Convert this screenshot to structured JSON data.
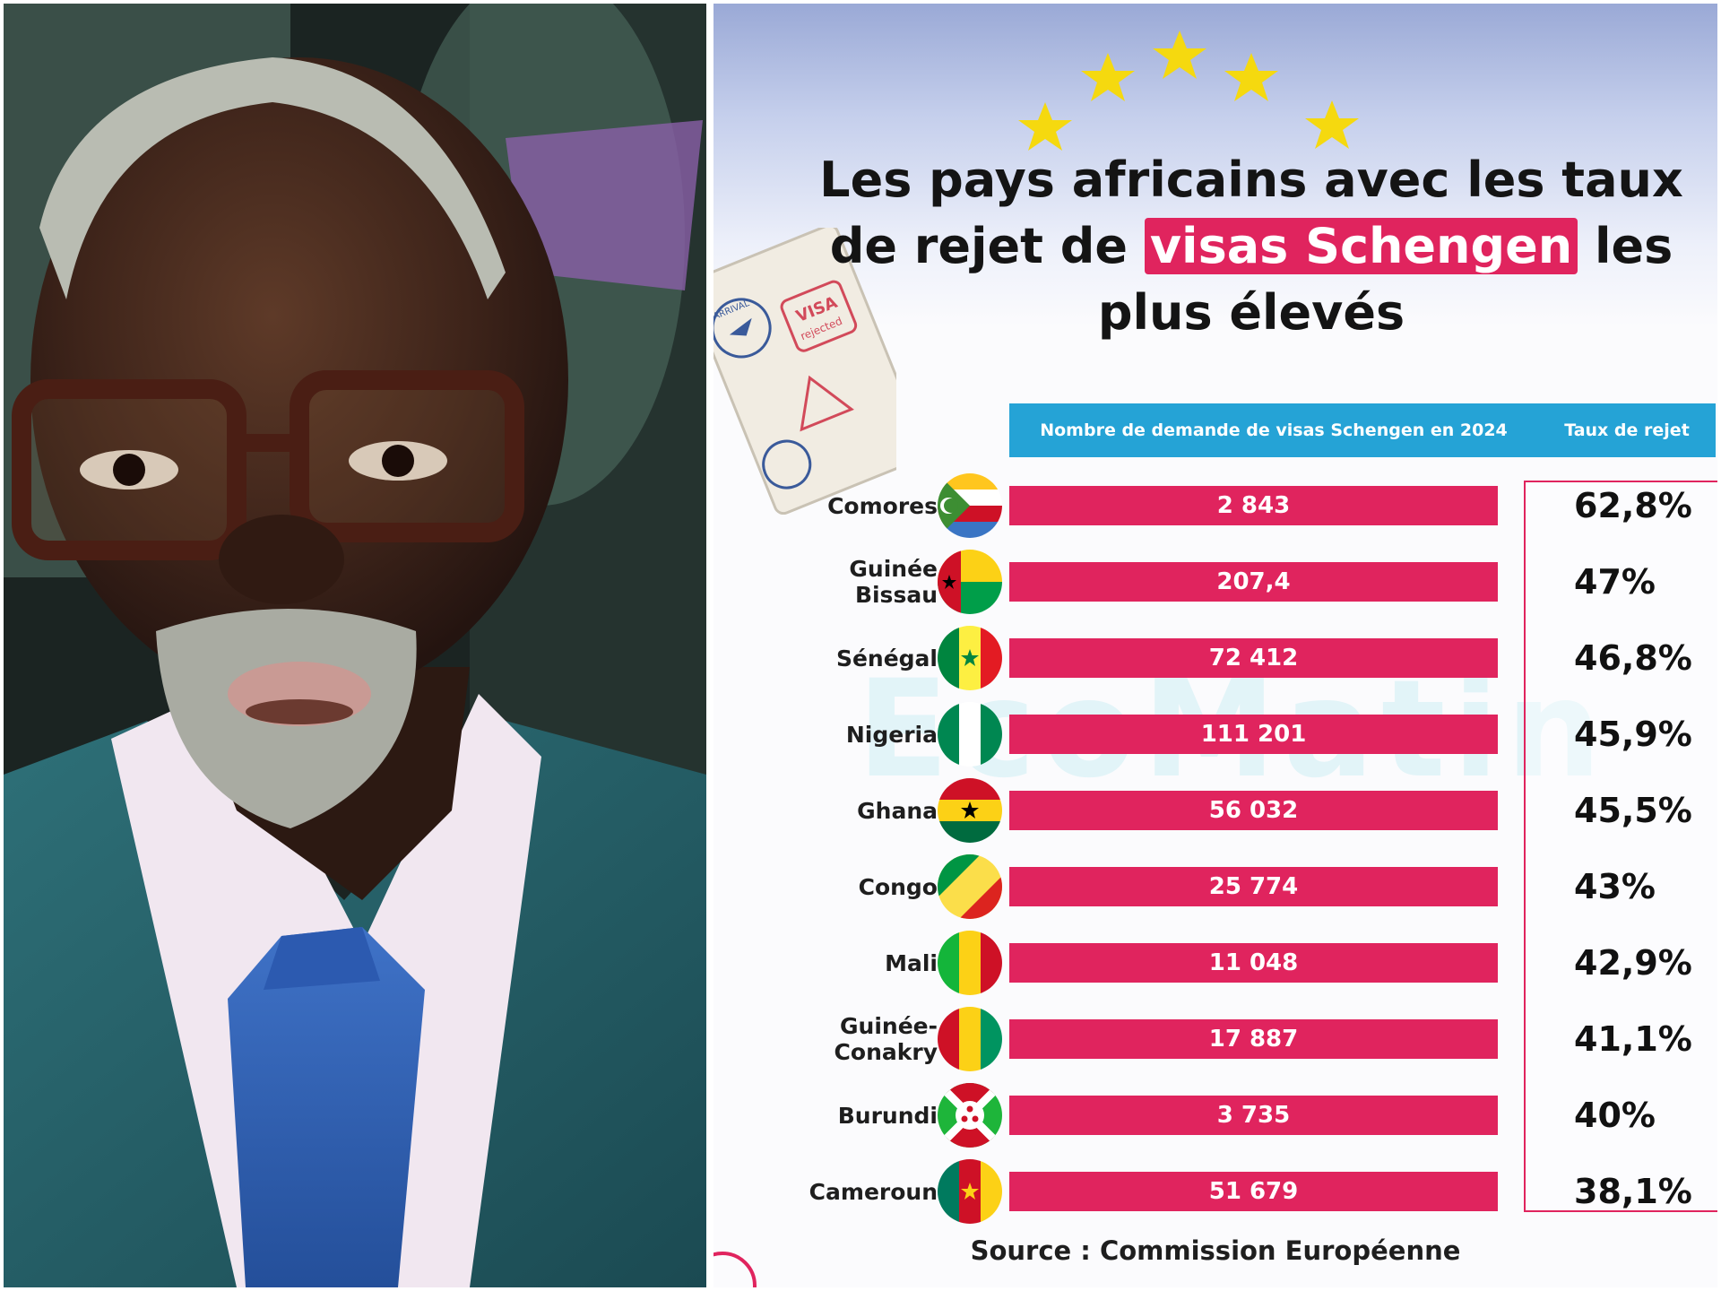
{
  "infographic": {
    "title_line1": "Les pays africains avec les taux",
    "title_line2_pre": "de rejet de ",
    "title_line2_highlight": "visas Schengen",
    "title_line2_post": " les",
    "title_line3": "plus élevés",
    "header_count": "Nombre de demande de visas Schengen en 2024",
    "header_rate": "Taux de rejet",
    "watermark": "EcoMatin",
    "passport_stamp_arrival": "ARRIVAL",
    "passport_stamp_visa": "VISA",
    "passport_stamp_rejected": "rejected",
    "source": "Source : Commission Européenne",
    "accent_color": "#e0245e",
    "header_color": "#25a3d6"
  },
  "chart_data": {
    "type": "table",
    "columns": [
      "Nombre de demande de visas Schengen en 2024",
      "Taux de rejet"
    ],
    "rows": [
      {
        "country": "Comores",
        "flag": "comoros-flag-icon",
        "demandes": "2 843",
        "taux": "62,8%"
      },
      {
        "country": "Guinée Bissau",
        "flag": "guinea-bissau-flag-icon",
        "demandes": "207,4",
        "taux": "47%"
      },
      {
        "country": "Sénégal",
        "flag": "senegal-flag-icon",
        "demandes": "72 412",
        "taux": "46,8%"
      },
      {
        "country": "Nigeria",
        "flag": "nigeria-flag-icon",
        "demandes": "111 201",
        "taux": "45,9%"
      },
      {
        "country": "Ghana",
        "flag": "ghana-flag-icon",
        "demandes": "56 032",
        "taux": "45,5%"
      },
      {
        "country": "Congo",
        "flag": "congo-flag-icon",
        "demandes": "25 774",
        "taux": "43%"
      },
      {
        "country": "Mali",
        "flag": "mali-flag-icon",
        "demandes": "11 048",
        "taux": "42,9%"
      },
      {
        "country": "Guinée-Conakry",
        "flag": "guinea-flag-icon",
        "demandes": "17 887",
        "taux": "41,1%"
      },
      {
        "country": "Burundi",
        "flag": "burundi-flag-icon",
        "demandes": "3 735",
        "taux": "40%"
      },
      {
        "country": "Cameroun",
        "flag": "cameroon-flag-icon",
        "demandes": "51 679",
        "taux": "38,1%"
      }
    ],
    "source": "Source : Commission Européenne"
  },
  "photo": {
    "subject_icon": "man-portrait-photo"
  }
}
